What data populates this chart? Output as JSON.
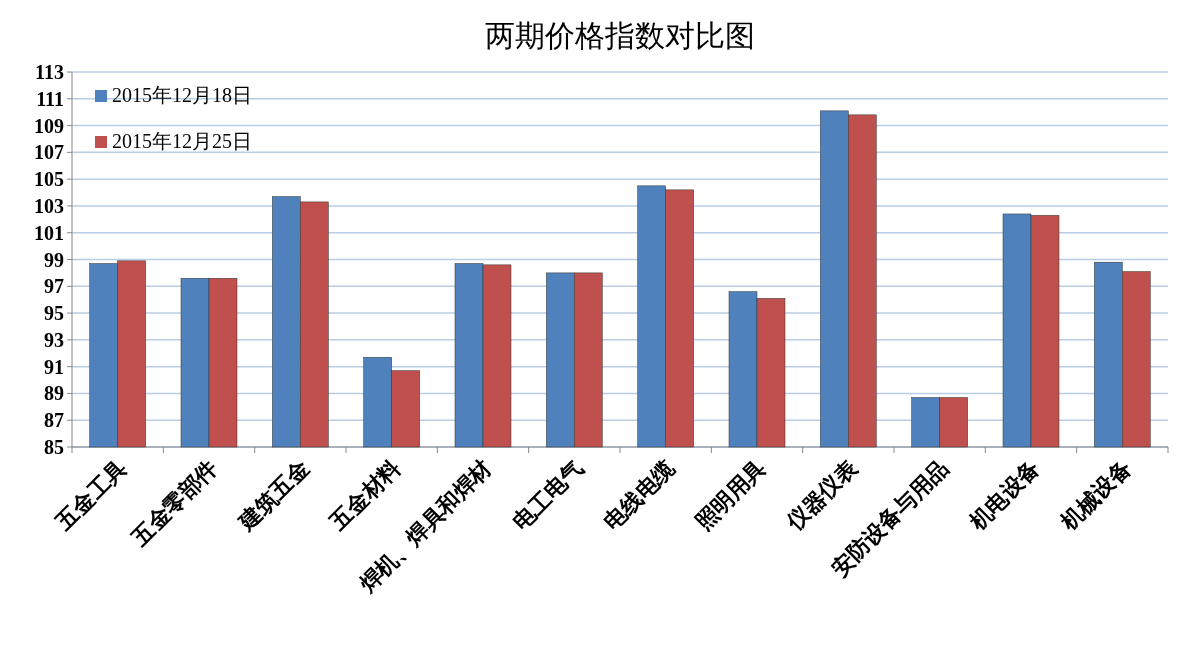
{
  "chart_data": {
    "type": "bar",
    "title": "两期价格指数对比图",
    "categories": [
      "五金工具",
      "五金零部件",
      "建筑五金",
      "五金材料",
      "焊机、焊具和焊材",
      "电工电气",
      "电线电缆",
      "照明用具",
      "仪器仪表",
      "安防设备与用品",
      "机电设备",
      "机械设备"
    ],
    "series": [
      {
        "name": "2015年12月18日",
        "color": "#4f81bd",
        "values": [
          98.7,
          97.6,
          103.7,
          91.7,
          98.7,
          98.0,
          104.5,
          96.6,
          110.1,
          88.7,
          102.4,
          98.8
        ]
      },
      {
        "name": "2015年12月25日",
        "color": "#c0504d",
        "values": [
          98.9,
          97.6,
          103.3,
          90.7,
          98.6,
          98.0,
          104.2,
          96.1,
          109.8,
          88.7,
          102.3,
          98.1
        ]
      }
    ],
    "ylim": [
      85,
      113
    ],
    "yticks": [
      85,
      87,
      89,
      91,
      93,
      95,
      97,
      99,
      101,
      103,
      105,
      107,
      109,
      111,
      113
    ],
    "grid": "y",
    "legend": "top left"
  }
}
